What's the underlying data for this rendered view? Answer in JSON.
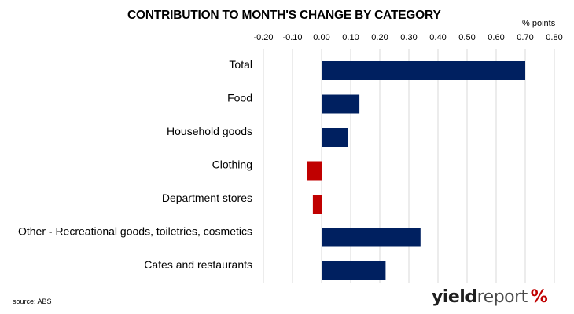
{
  "chart_data": {
    "type": "bar",
    "orientation": "horizontal",
    "title": "CONTRIBUTION TO MONTH'S CHANGE BY CATEGORY",
    "unit_label": "% points",
    "categories": [
      "Total",
      "Food",
      "Household goods",
      "Clothing",
      "Department stores",
      "Other - Recreational goods, toiletries, cosmetics",
      "Cafes and restaurants"
    ],
    "values": [
      0.7,
      0.13,
      0.09,
      -0.05,
      -0.03,
      0.34,
      0.22
    ],
    "xlim": [
      -0.2,
      0.8
    ],
    "xticks": [
      "-0.20",
      "-0.10",
      "0.00",
      "0.10",
      "0.20",
      "0.30",
      "0.40",
      "0.50",
      "0.60",
      "0.70",
      "0.80"
    ],
    "x_axis_position": "top",
    "grid": true,
    "colors": {
      "positive": "#002060",
      "negative": "#c00000",
      "grid": "#d9d9d9"
    }
  },
  "source_note": "source: ABS",
  "brand": {
    "yield": "yield",
    "report": "report",
    "percent": "%"
  }
}
